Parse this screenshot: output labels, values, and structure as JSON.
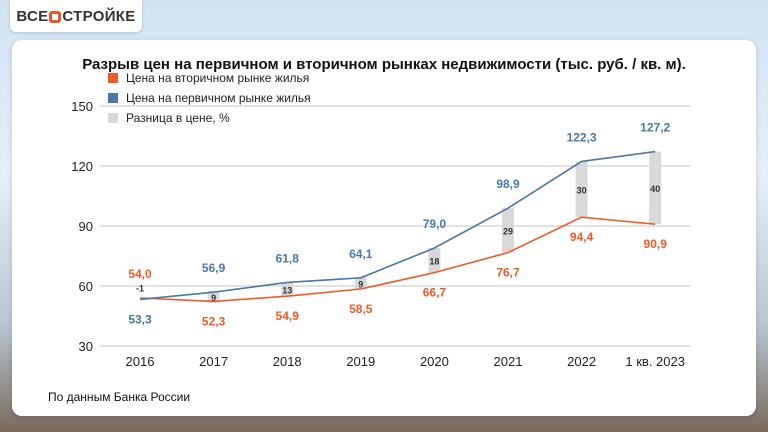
{
  "logo": "ВСЕ О СТРОЙКЕ",
  "logo_parts": [
    "ВСЕ",
    "СТРОЙКЕ"
  ],
  "source": "По данным Банка России",
  "chart_data": {
    "type": "line",
    "title": "Разрыв цен на первичном и вторичном рынках недвижимости (тыс. руб. / кв. м).",
    "categories": [
      "2016",
      "2017",
      "2018",
      "2019",
      "2020",
      "2021",
      "2022",
      "1 кв. 2023"
    ],
    "ylim": [
      30,
      150
    ],
    "yticks": [
      30,
      60,
      90,
      120,
      150
    ],
    "grid": true,
    "legend_position": "top-left",
    "series": [
      {
        "name": "Цена на вторичном рынке жилья",
        "color": "#f05a28",
        "values": [
          54.0,
          52.3,
          54.9,
          58.5,
          66.7,
          76.7,
          94.4,
          90.9
        ],
        "labels": [
          "54,0",
          "52,3",
          "54,9",
          "58,5",
          "66,7",
          "76,7",
          "94,4",
          "90,9"
        ]
      },
      {
        "name": "Цена на первичном рынке жилья",
        "color": "#4a78a8",
        "values": [
          53.3,
          56.9,
          61.8,
          64.1,
          79.0,
          98.9,
          122.3,
          127.2
        ],
        "labels": [
          "53,3",
          "56,9",
          "61,8",
          "64,1",
          "79,0",
          "98,9",
          "122,3",
          "127,2"
        ]
      }
    ],
    "gap": {
      "name": "Разница в цене, %",
      "color": "#d9d9d9",
      "values": [
        -1,
        9,
        13,
        9,
        18,
        29,
        30,
        40
      ]
    }
  }
}
